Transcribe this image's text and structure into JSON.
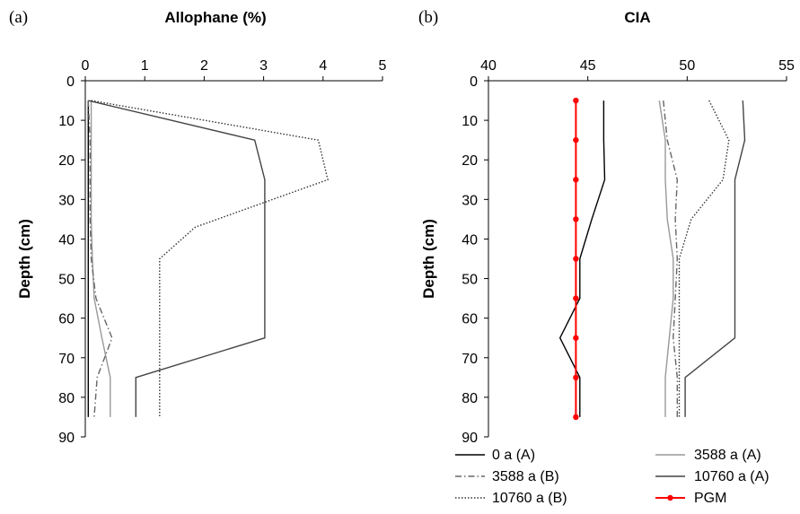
{
  "chart_data": [
    {
      "type": "line",
      "panel_label": "(a)",
      "title": "Allophane (%)",
      "xlabel": "",
      "ylabel": "Depth (cm)",
      "xlim": [
        0,
        5
      ],
      "ylim": [
        0,
        90
      ],
      "x_ticks": [
        "0",
        "1",
        "2",
        "3",
        "4",
        "5"
      ],
      "y_ticks": [
        "0",
        "10",
        "20",
        "30",
        "40",
        "50",
        "60",
        "70",
        "80",
        "90"
      ],
      "x_axis_position": "top",
      "y_axis_inverted": true,
      "grid": false,
      "series": [
        {
          "name": "0 a (A)",
          "style": "solid",
          "color": "#000000",
          "x": [
            0.05,
            0.05,
            0.05,
            0.05,
            0.05,
            0.05,
            0.05,
            0.05,
            0.05
          ],
          "y": [
            5,
            15,
            25,
            35,
            45,
            55,
            65,
            75,
            85
          ]
        },
        {
          "name": "3588 a (A)",
          "style": "solid",
          "color": "#999999",
          "x": [
            0.1,
            0.1,
            0.1,
            0.1,
            0.12,
            0.15,
            0.28,
            0.42,
            0.42
          ],
          "y": [
            5,
            15,
            25,
            35,
            45,
            55,
            65,
            75,
            85
          ]
        },
        {
          "name": "3588 a (B)",
          "style": "dashdot",
          "color": "#666666",
          "x": [
            0.05,
            0.08,
            0.08,
            0.08,
            0.1,
            0.18,
            0.45,
            0.2,
            0.15
          ],
          "y": [
            5,
            15,
            25,
            35,
            45,
            55,
            65,
            75,
            85
          ]
        },
        {
          "name": "10760 a (A)",
          "style": "solid",
          "color": "#444444",
          "x": [
            0.05,
            2.85,
            3.02,
            3.02,
            3.02,
            3.02,
            3.02,
            0.85,
            0.85
          ],
          "y": [
            5,
            15,
            25,
            35,
            45,
            55,
            65,
            75,
            85
          ]
        },
        {
          "name": "10760 a (B)",
          "style": "dotted",
          "color": "#333333",
          "x": [
            0.1,
            3.92,
            4.08,
            1.85,
            1.25,
            1.25,
            1.25,
            1.25,
            1.25
          ],
          "y": [
            5,
            15,
            25,
            37,
            45,
            55,
            65,
            75,
            85
          ]
        }
      ]
    },
    {
      "type": "line",
      "panel_label": "(b)",
      "title": "CIA",
      "xlabel": "",
      "ylabel": "Depth (cm)",
      "xlim": [
        40,
        55
      ],
      "ylim": [
        0,
        90
      ],
      "x_ticks": [
        "40",
        "45",
        "50",
        "55"
      ],
      "y_ticks": [
        "0",
        "10",
        "20",
        "30",
        "40",
        "50",
        "60",
        "70",
        "80",
        "90"
      ],
      "x_axis_position": "top",
      "y_axis_inverted": true,
      "grid": false,
      "legend_position": "bottom",
      "series": [
        {
          "name": "0 a (A)",
          "style": "solid",
          "color": "#000000",
          "x": [
            45.8,
            45.8,
            45.85,
            45.2,
            44.6,
            44.6,
            43.6,
            44.6,
            44.6
          ],
          "y": [
            5,
            15,
            25,
            35,
            45,
            55,
            65,
            75,
            85
          ]
        },
        {
          "name": "3588 a (A)",
          "style": "solid",
          "color": "#999999",
          "x": [
            48.6,
            48.9,
            48.9,
            49.0,
            49.3,
            49.3,
            49.1,
            48.9,
            48.9
          ],
          "y": [
            5,
            15,
            25,
            35,
            45,
            55,
            65,
            75,
            85
          ]
        },
        {
          "name": "3588 a (B)",
          "style": "dashdot",
          "color": "#666666",
          "x": [
            48.8,
            49.0,
            49.5,
            49.4,
            49.5,
            49.4,
            49.3,
            49.5,
            49.5
          ],
          "y": [
            5,
            15,
            25,
            35,
            45,
            55,
            65,
            75,
            85
          ]
        },
        {
          "name": "10760 a (A)",
          "style": "solid",
          "color": "#444444",
          "x": [
            52.8,
            52.9,
            52.4,
            52.4,
            52.4,
            52.4,
            52.4,
            49.9,
            49.9
          ],
          "y": [
            5,
            15,
            25,
            35,
            45,
            55,
            65,
            75,
            85
          ]
        },
        {
          "name": "10760 a (B)",
          "style": "dotted",
          "color": "#333333",
          "x": [
            51.1,
            52.1,
            51.8,
            50.2,
            49.6,
            49.6,
            49.6,
            49.6,
            49.6
          ],
          "y": [
            5,
            15,
            25,
            35,
            45,
            55,
            65,
            75,
            85
          ]
        },
        {
          "name": "PGM",
          "style": "marker",
          "color": "#ff0000",
          "x": [
            44.4,
            44.4,
            44.4,
            44.4,
            44.4,
            44.4,
            44.4,
            44.4,
            44.4
          ],
          "y": [
            5,
            15,
            25,
            35,
            45,
            55,
            65,
            75,
            85
          ]
        }
      ]
    }
  ]
}
